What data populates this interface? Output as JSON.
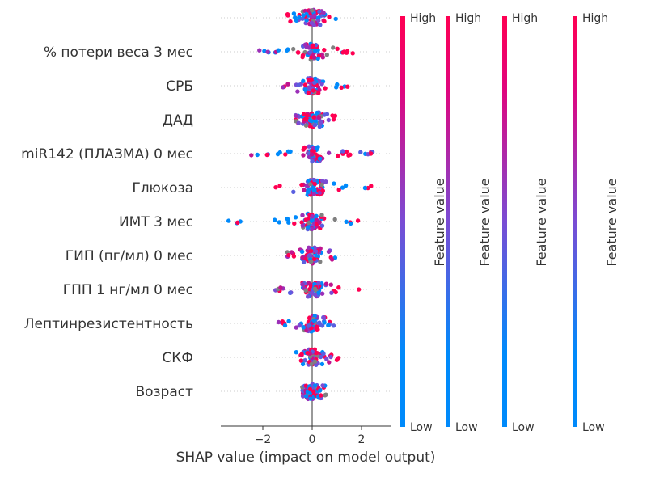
{
  "chart_data": {
    "type": "scatter",
    "xlabel": "SHAP value (impact on model output)",
    "xlim": [
      -3.8,
      3.2
    ],
    "xticks": [
      -2,
      0,
      2
    ],
    "xtick_labels": [
      "−2",
      "0",
      "2"
    ],
    "features": [
      "",
      "% потери веса 3 мес",
      "СРБ",
      "ДАД",
      "miR142 (ПЛАЗМА) 0 мес",
      "Глюкоза",
      "ИМТ 3 мес",
      "ГИП (пг/мл) 0 мес",
      "ГПП 1 нг/мл 0 мес",
      "Лептинрезистентность",
      "СКФ",
      "Возраст"
    ],
    "shap_ranges": [
      [
        -1.4,
        1.0
      ],
      [
        -2.2,
        1.9
      ],
      [
        -1.2,
        1.9
      ],
      [
        -0.7,
        1.0
      ],
      [
        -2.6,
        2.5
      ],
      [
        -1.5,
        2.5
      ],
      [
        -3.4,
        2.7
      ],
      [
        -1.1,
        1.1
      ],
      [
        -1.5,
        1.9
      ],
      [
        -1.4,
        1.1
      ],
      [
        -1.0,
        1.2
      ],
      [
        -0.4,
        0.6
      ]
    ],
    "colorbar": {
      "title": "Feature value",
      "high_label": "High",
      "low_label": "Low",
      "count": 4,
      "low_color": "#008afb",
      "mid_color": "#7a4cd4",
      "high_color": "#ff0052"
    }
  }
}
